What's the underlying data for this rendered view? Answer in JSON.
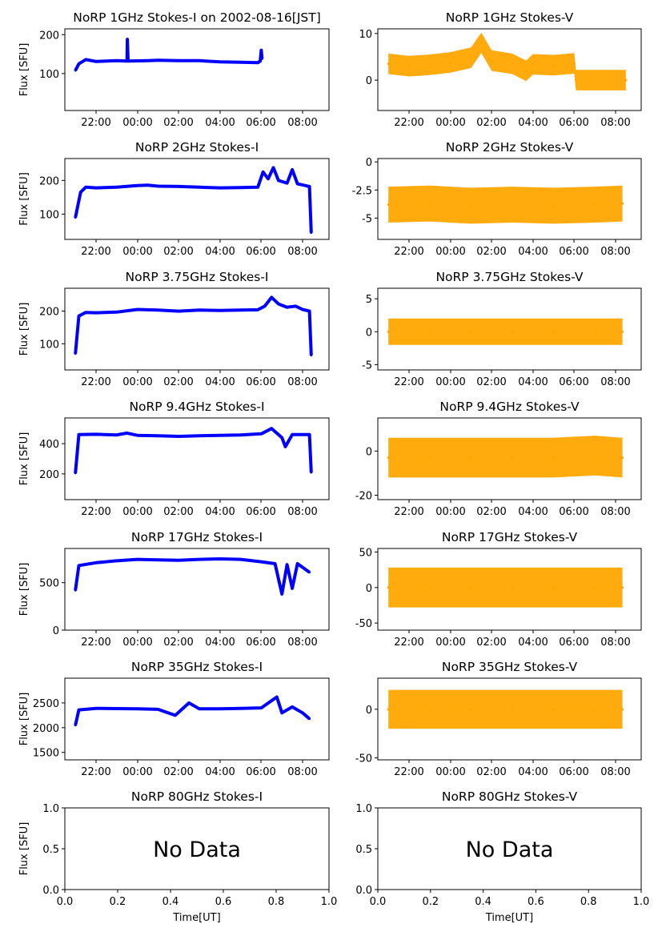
{
  "colors": {
    "stokes_i": "#0000ff",
    "stokes_v": "#ffa500",
    "axis": "#000000"
  },
  "time_ticks": [
    "22:00",
    "00:00",
    "02:00",
    "04:00",
    "06:00",
    "08:00"
  ],
  "no_data_text": "No Data",
  "chart_data": [
    {
      "type": "scatter",
      "title": "NoRP 1GHz Stokes-I on 2002-08-16[JST]",
      "ylabel": "Flux [SFU]",
      "xlabel": "",
      "x_range": [
        "20:30",
        "09:00"
      ],
      "ylim": [
        5,
        215
      ],
      "yticks": [
        100,
        200
      ],
      "series": [
        {
          "values": [
            [
              "21:00",
              108
            ],
            [
              "21:10",
              125
            ],
            [
              "21:30",
              136
            ],
            [
              "22:00",
              131
            ],
            [
              "23:00",
              133
            ],
            [
              "23:30",
              132
            ],
            [
              "23:31",
              188
            ],
            [
              "23:33",
              132
            ],
            [
              "00:30",
              133
            ],
            [
              "01:00",
              134
            ],
            [
              "02:00",
              133
            ],
            [
              "03:00",
              133
            ],
            [
              "04:00",
              130
            ],
            [
              "05:00",
              129
            ],
            [
              "05:50",
              128
            ],
            [
              "05:57",
              132
            ],
            [
              "06:00",
              160
            ],
            [
              "06:02",
              138
            ]
          ]
        }
      ]
    },
    {
      "type": "scatter",
      "title": "NoRP 1GHz Stokes-V",
      "ylabel": "",
      "xlabel": "",
      "x_range": [
        "20:30",
        "09:00"
      ],
      "ylim": [
        -6.5,
        11
      ],
      "yticks": [
        0,
        10
      ],
      "series": [
        {
          "values": [
            [
              "21:00",
              3.5
            ],
            [
              "22:00",
              3.0
            ],
            [
              "23:00",
              3.3
            ],
            [
              "00:00",
              3.8
            ],
            [
              "01:00",
              4.8
            ],
            [
              "01:30",
              8.0
            ],
            [
              "02:00",
              4.2
            ],
            [
              "03:00",
              3.5
            ],
            [
              "03:40",
              2.0
            ],
            [
              "04:00",
              3.4
            ],
            [
              "05:00",
              3.2
            ],
            [
              "06:00",
              3.6
            ],
            [
              "06:05",
              0
            ],
            [
              "08:30",
              0
            ]
          ]
        }
      ]
    },
    {
      "type": "scatter",
      "title": "NoRP 2GHz Stokes-I",
      "ylabel": "Flux [SFU]",
      "xlabel": "",
      "x_range": [
        "20:30",
        "09:00"
      ],
      "ylim": [
        25,
        265
      ],
      "yticks": [
        100,
        200
      ],
      "series": [
        {
          "values": [
            [
              "21:00",
              90
            ],
            [
              "21:15",
              165
            ],
            [
              "21:30",
              180
            ],
            [
              "22:00",
              178
            ],
            [
              "23:00",
              180
            ],
            [
              "00:00",
              185
            ],
            [
              "00:30",
              186
            ],
            [
              "01:00",
              183
            ],
            [
              "02:00",
              182
            ],
            [
              "03:00",
              180
            ],
            [
              "04:00",
              178
            ],
            [
              "05:00",
              179
            ],
            [
              "05:50",
              180
            ],
            [
              "06:05",
              225
            ],
            [
              "06:20",
              205
            ],
            [
              "06:35",
              238
            ],
            [
              "06:50",
              200
            ],
            [
              "07:15",
              192
            ],
            [
              "07:30",
              232
            ],
            [
              "07:45",
              190
            ],
            [
              "08:20",
              182
            ],
            [
              "08:25",
              45
            ]
          ]
        }
      ]
    },
    {
      "type": "scatter",
      "title": "NoRP 2GHz Stokes-V",
      "ylabel": "",
      "xlabel": "",
      "x_range": [
        "20:30",
        "09:00"
      ],
      "ylim": [
        -6.9,
        0.3
      ],
      "yticks": [
        0.0,
        -2.5,
        -5.0
      ],
      "series": [
        {
          "values": [
            [
              "21:00",
              -3.8
            ],
            [
              "23:00",
              -3.7
            ],
            [
              "01:00",
              -3.9
            ],
            [
              "03:00",
              -3.8
            ],
            [
              "05:00",
              -3.9
            ],
            [
              "07:00",
              -3.8
            ],
            [
              "08:20",
              -3.7
            ]
          ]
        }
      ]
    },
    {
      "type": "scatter",
      "title": "NoRP 3.75GHz Stokes-I",
      "ylabel": "Flux [SFU]",
      "xlabel": "",
      "x_range": [
        "20:30",
        "09:00"
      ],
      "ylim": [
        20,
        270
      ],
      "yticks": [
        100,
        200
      ],
      "series": [
        {
          "values": [
            [
              "21:00",
              70
            ],
            [
              "21:10",
              185
            ],
            [
              "21:30",
              196
            ],
            [
              "22:00",
              195
            ],
            [
              "23:00",
              197
            ],
            [
              "00:00",
              205
            ],
            [
              "01:00",
              203
            ],
            [
              "02:00",
              200
            ],
            [
              "03:00",
              203
            ],
            [
              "04:00",
              202
            ],
            [
              "05:00",
              203
            ],
            [
              "05:50",
              204
            ],
            [
              "06:10",
              215
            ],
            [
              "06:30",
              242
            ],
            [
              "06:50",
              222
            ],
            [
              "07:15",
              212
            ],
            [
              "07:40",
              215
            ],
            [
              "08:00",
              205
            ],
            [
              "08:20",
              200
            ],
            [
              "08:25",
              65
            ]
          ]
        }
      ]
    },
    {
      "type": "scatter",
      "title": "NoRP 3.75GHz Stokes-V",
      "ylabel": "",
      "xlabel": "",
      "x_range": [
        "20:30",
        "09:00"
      ],
      "ylim": [
        -5.8,
        6.6
      ],
      "yticks": [
        5,
        0,
        -5
      ],
      "series": [
        {
          "values": [
            [
              "21:00",
              0
            ],
            [
              "23:00",
              0
            ],
            [
              "01:00",
              0
            ],
            [
              "03:00",
              0
            ],
            [
              "05:00",
              0
            ],
            [
              "07:00",
              0
            ],
            [
              "08:20",
              0
            ]
          ]
        }
      ]
    },
    {
      "type": "scatter",
      "title": "NoRP 9.4GHz Stokes-I",
      "ylabel": "Flux [SFU]",
      "xlabel": "",
      "x_range": [
        "20:30",
        "09:00"
      ],
      "ylim": [
        30,
        570
      ],
      "yticks": [
        200,
        400
      ],
      "series": [
        {
          "values": [
            [
              "21:00",
              205
            ],
            [
              "21:10",
              460
            ],
            [
              "22:00",
              462
            ],
            [
              "23:00",
              458
            ],
            [
              "23:30",
              470
            ],
            [
              "00:00",
              455
            ],
            [
              "01:00",
              452
            ],
            [
              "02:00",
              448
            ],
            [
              "03:00",
              452
            ],
            [
              "04:00",
              455
            ],
            [
              "05:00",
              458
            ],
            [
              "06:00",
              465
            ],
            [
              "06:30",
              500
            ],
            [
              "07:00",
              440
            ],
            [
              "07:10",
              380
            ],
            [
              "07:30",
              460
            ],
            [
              "08:20",
              460
            ],
            [
              "08:25",
              210
            ]
          ]
        }
      ]
    },
    {
      "type": "scatter",
      "title": "NoRP 9.4GHz Stokes-V",
      "ylabel": "",
      "xlabel": "",
      "x_range": [
        "20:30",
        "09:00"
      ],
      "ylim": [
        -22,
        15
      ],
      "yticks": [
        0,
        -20
      ],
      "series": [
        {
          "values": [
            [
              "21:00",
              -3
            ],
            [
              "23:00",
              -3
            ],
            [
              "01:00",
              -3
            ],
            [
              "03:00",
              -3
            ],
            [
              "05:00",
              -3
            ],
            [
              "07:00",
              -2
            ],
            [
              "08:20",
              -3
            ]
          ]
        }
      ]
    },
    {
      "type": "scatter",
      "title": "NoRP 17GHz Stokes-I",
      "ylabel": "Flux [SFU]",
      "xlabel": "",
      "x_range": [
        "20:30",
        "09:00"
      ],
      "ylim": [
        0,
        860
      ],
      "yticks": [
        0,
        500
      ],
      "series": [
        {
          "values": [
            [
              "21:00",
              420
            ],
            [
              "21:10",
              680
            ],
            [
              "22:00",
              710
            ],
            [
              "23:00",
              730
            ],
            [
              "00:00",
              745
            ],
            [
              "01:00",
              740
            ],
            [
              "02:00",
              735
            ],
            [
              "03:00",
              745
            ],
            [
              "04:00",
              750
            ],
            [
              "05:00",
              745
            ],
            [
              "06:00",
              720
            ],
            [
              "06:40",
              700
            ],
            [
              "07:00",
              380
            ],
            [
              "07:15",
              690
            ],
            [
              "07:30",
              440
            ],
            [
              "07:45",
              700
            ],
            [
              "08:20",
              610
            ]
          ]
        }
      ]
    },
    {
      "type": "scatter",
      "title": "NoRP 17GHz Stokes-V",
      "ylabel": "",
      "xlabel": "",
      "x_range": [
        "20:30",
        "09:00"
      ],
      "ylim": [
        -60,
        55
      ],
      "yticks": [
        50,
        0,
        -50
      ],
      "series": [
        {
          "values": [
            [
              "21:00",
              0
            ],
            [
              "23:00",
              0
            ],
            [
              "01:00",
              0
            ],
            [
              "03:00",
              0
            ],
            [
              "05:00",
              0
            ],
            [
              "07:00",
              0
            ],
            [
              "08:20",
              0
            ]
          ]
        }
      ]
    },
    {
      "type": "scatter",
      "title": "NoRP 35GHz Stokes-I",
      "ylabel": "Flux [SFU]",
      "xlabel": "",
      "x_range": [
        "20:30",
        "09:00"
      ],
      "ylim": [
        1350,
        3000
      ],
      "yticks": [
        1500,
        2000,
        2500
      ],
      "series": [
        {
          "values": [
            [
              "21:00",
              2050
            ],
            [
              "21:10",
              2360
            ],
            [
              "22:00",
              2390
            ],
            [
              "23:00",
              2385
            ],
            [
              "00:00",
              2380
            ],
            [
              "01:00",
              2370
            ],
            [
              "01:50",
              2250
            ],
            [
              "02:30",
              2500
            ],
            [
              "03:00",
              2380
            ],
            [
              "04:00",
              2380
            ],
            [
              "05:00",
              2390
            ],
            [
              "06:00",
              2400
            ],
            [
              "06:45",
              2620
            ],
            [
              "07:00",
              2300
            ],
            [
              "07:30",
              2420
            ],
            [
              "08:00",
              2300
            ],
            [
              "08:20",
              2180
            ]
          ]
        }
      ]
    },
    {
      "type": "scatter",
      "title": "NoRP 35GHz Stokes-V",
      "ylabel": "",
      "xlabel": "",
      "x_range": [
        "20:30",
        "09:00"
      ],
      "ylim": [
        -52,
        32
      ],
      "yticks": [
        0,
        -50
      ],
      "series": [
        {
          "values": [
            [
              "21:00",
              0
            ],
            [
              "23:00",
              0
            ],
            [
              "01:00",
              0
            ],
            [
              "03:00",
              0
            ],
            [
              "05:00",
              0
            ],
            [
              "07:00",
              0
            ],
            [
              "08:20",
              0
            ]
          ]
        }
      ]
    },
    {
      "type": "scatter",
      "title": "NoRP 80GHz Stokes-I",
      "ylabel": "Flux [SFU]",
      "xlabel": "Time[UT]",
      "xlim": [
        0,
        1
      ],
      "ylim": [
        0,
        1
      ],
      "xticks": [
        "0.0",
        "0.2",
        "0.4",
        "0.6",
        "0.8",
        "1.0"
      ],
      "yticks": [
        "0.0",
        "0.5",
        "1.0"
      ],
      "series": []
    },
    {
      "type": "scatter",
      "title": "NoRP 80GHz Stokes-V",
      "ylabel": "",
      "xlabel": "Time[UT]",
      "xlim": [
        0,
        1
      ],
      "ylim": [
        0,
        1
      ],
      "xticks": [
        "0.0",
        "0.2",
        "0.4",
        "0.6",
        "0.8",
        "1.0"
      ],
      "yticks": [
        "0.0",
        "0.5",
        "1.0"
      ],
      "series": []
    }
  ]
}
